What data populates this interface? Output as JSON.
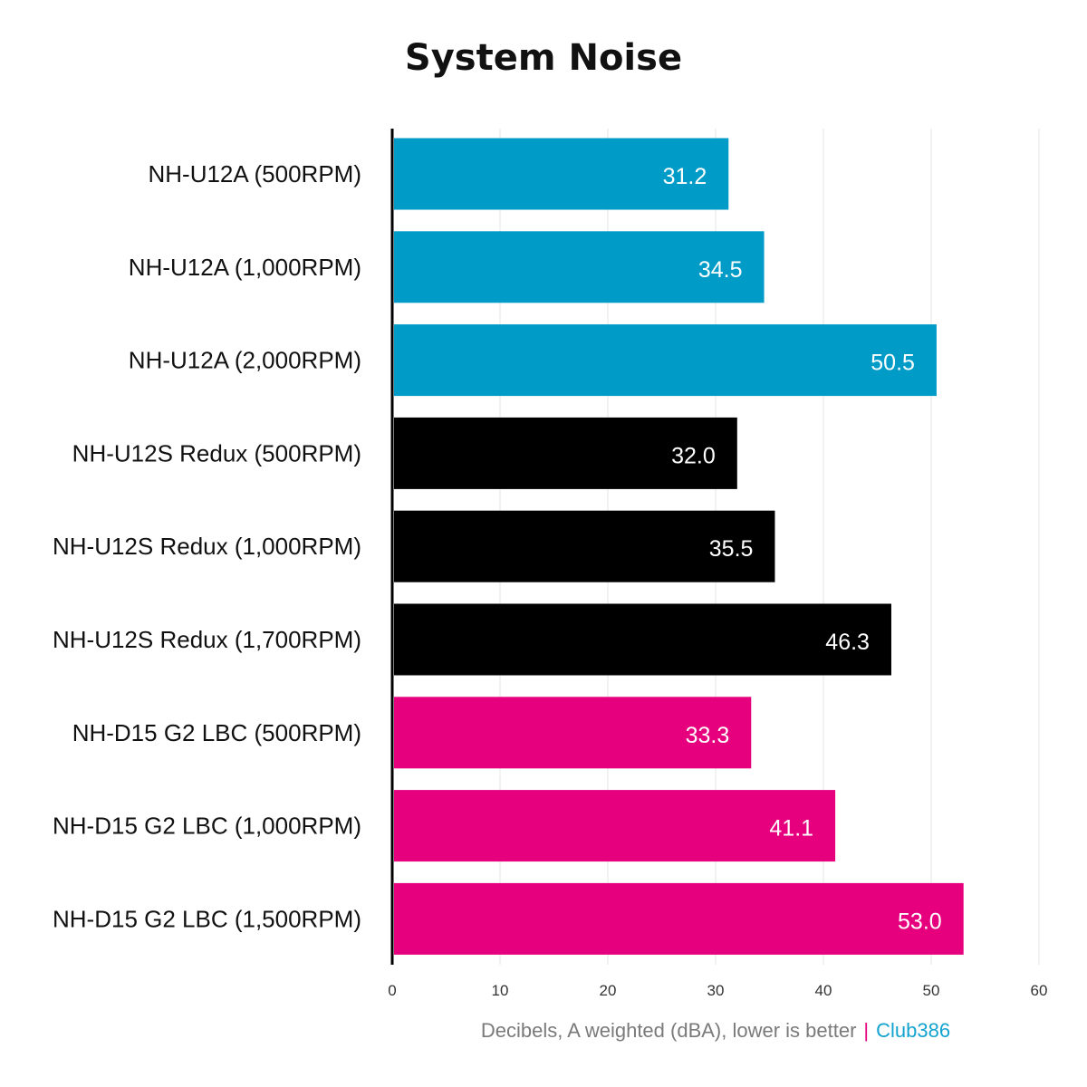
{
  "chart_data": {
    "type": "bar",
    "orientation": "horizontal",
    "title": "System Noise",
    "xlabel": "Decibels, A weighted (dBA), lower is better",
    "source_separator": "|",
    "source": "Club386",
    "xlim": [
      0,
      60
    ],
    "xticks": [
      0,
      10,
      20,
      30,
      40,
      50,
      60
    ],
    "grid": true,
    "categories": [
      "NH-U12A (500RPM)",
      "NH-U12A (1,000RPM)",
      "NH-U12A (2,000RPM)",
      "NH-U12S Redux (500RPM)",
      "NH-U12S Redux (1,000RPM)",
      "NH-U12S Redux (1,700RPM)",
      "NH-D15 G2 LBC (500RPM)",
      "NH-D15 G2 LBC (1,000RPM)",
      "NH-D15 G2 LBC (1,500RPM)"
    ],
    "values": [
      31.2,
      34.5,
      50.5,
      32.0,
      35.5,
      46.3,
      33.3,
      41.1,
      53.0
    ],
    "value_labels": [
      "31.2",
      "34.5",
      "50.5",
      "32.0",
      "35.5",
      "46.3",
      "33.3",
      "41.1",
      "53.0"
    ],
    "bar_colors": [
      "#009bc7",
      "#009bc7",
      "#009bc7",
      "#000000",
      "#000000",
      "#000000",
      "#e6007e",
      "#e6007e",
      "#e6007e"
    ],
    "colors": {
      "separator": "#e6007e",
      "source": "#13a3cf"
    }
  }
}
